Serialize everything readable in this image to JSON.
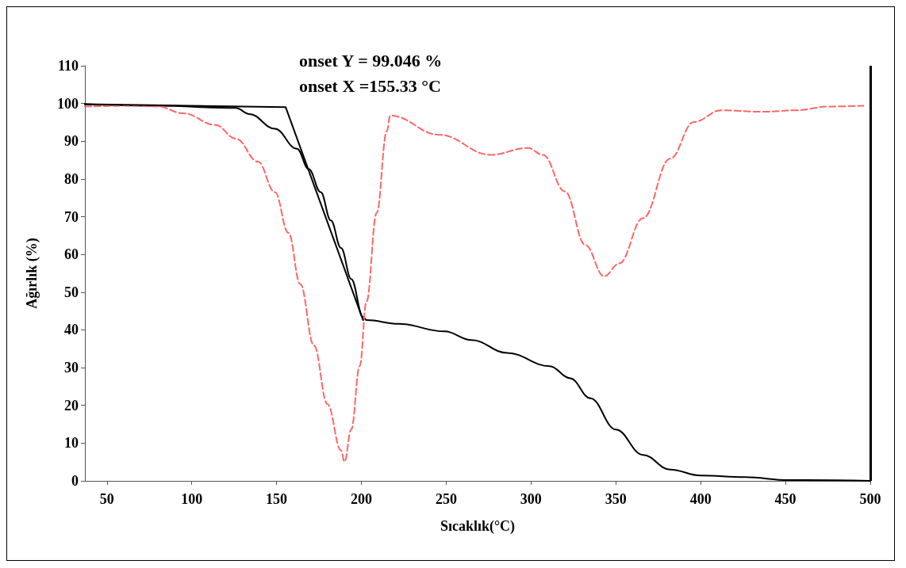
{
  "chart_data": {
    "type": "line",
    "xlabel": "Sıcaklık(°C)",
    "ylabel": "Ağırlık (%)",
    "annotations": [
      "onset Y = 99.046 %",
      "onset X =155.33 °C"
    ],
    "xlim": [
      37,
      500
    ],
    "ylim": [
      0,
      110
    ],
    "xticks": [
      50,
      100,
      150,
      200,
      250,
      300,
      350,
      400,
      450,
      500
    ],
    "yticks": [
      0,
      10,
      20,
      30,
      40,
      50,
      60,
      70,
      80,
      90,
      100,
      110
    ],
    "grid": false,
    "marker": "none",
    "ref_lines": [
      {
        "axis": "x",
        "value": 500,
        "color": "#000000"
      }
    ],
    "series": [
      {
        "color": "#000000",
        "line_style": "solid",
        "x": [
          37,
          80,
          126,
          134,
          149,
          162,
          169,
          176,
          182,
          188,
          194,
          201,
          203,
          222,
          249,
          265,
          286,
          311,
          323,
          335,
          350,
          366,
          382,
          400,
          426,
          452,
          500
        ],
        "values": [
          99.8,
          99.4,
          98.8,
          97.2,
          93.3,
          88,
          82.6,
          76.5,
          69,
          61.7,
          53.5,
          43.4,
          42.6,
          41.6,
          39.6,
          37.3,
          33.9,
          30.4,
          27.2,
          21.9,
          13.6,
          6.9,
          3.0,
          1.4,
          1.0,
          0.2,
          0
        ]
      },
      {
        "color": "#ff6666",
        "line_style": "dashed",
        "x": [
          37,
          65,
          80,
          95,
          114,
          126,
          139,
          149,
          157,
          164,
          172,
          180,
          188,
          190,
          194,
          199,
          203,
          209,
          215,
          217,
          246,
          276,
          298,
          307,
          320,
          332,
          343,
          352,
          366,
          382,
          396,
          412,
          436,
          456,
          476,
          496
        ],
        "values": [
          99.2,
          99.4,
          99.2,
          97.4,
          94.3,
          90.7,
          84.6,
          76.5,
          65.7,
          52.1,
          35.9,
          20.3,
          8.1,
          5.1,
          13.6,
          30.4,
          47.5,
          71,
          92.7,
          96.8,
          91.7,
          86.4,
          88.2,
          86.4,
          76.7,
          62.5,
          54.2,
          57.6,
          69.6,
          85.4,
          95.1,
          98.2,
          97.8,
          98.2,
          99.2,
          99.4
        ]
      },
      {
        "color": "#000000",
        "line_style": "solid",
        "x": [
          37,
          155.33,
          201
        ],
        "values": [
          99.8,
          99.046,
          42.6
        ]
      }
    ]
  }
}
